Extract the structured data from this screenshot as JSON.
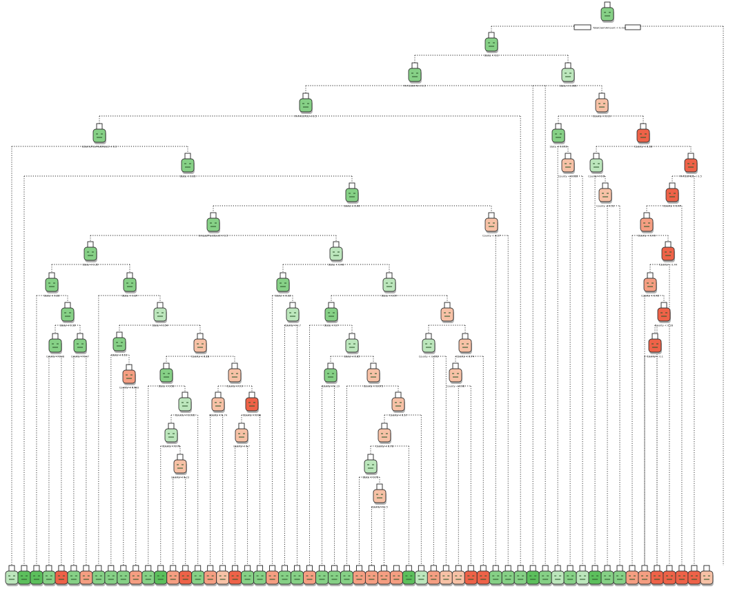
{
  "colors": {
    "dark_green": "#5cbf5c",
    "green": "#86d086",
    "light_green": "#bce6bc",
    "pale_red": "#f7c1a6",
    "salmon": "#f59e82",
    "red": "#ee6248",
    "shadow": "#b4b4b4",
    "edge": "#222222"
  },
  "icon": "node-icon",
  "root_label": "TotalClaimAmount < 0.032",
  "internal_nodes": [
    {
      "label": "State < 0.1",
      "fill": "green"
    },
    {
      "label": "PHY330076 < 0.5",
      "fill": "green"
    },
    {
      "label": "State < 0.066",
      "fill": "light_green"
    },
    {
      "label": "PHY410702 < 0.5",
      "fill": "green"
    },
    {
      "label": "IsSameProvMultiRole1 < 0.5",
      "fill": "green"
    },
    {
      "label": "State < 0.03",
      "fill": "green"
    },
    {
      "label": "State < 0.06",
      "fill": "green"
    },
    {
      "label": "UniquePhysCount < 1.5",
      "fill": "green"
    },
    {
      "label": "State < 0.35",
      "fill": "green"
    },
    {
      "label": "State < 0.28",
      "fill": "green"
    },
    {
      "label": "State < 0.16",
      "fill": "green"
    },
    {
      "label": "State < 0.37",
      "fill": "green"
    },
    {
      "label": "State < 0.54",
      "fill": "light_green"
    },
    {
      "label": "County < 0.28",
      "fill": "pale_red"
    },
    {
      "label": "State < 0.46",
      "fill": "light_green"
    },
    {
      "label": "State < 0.57",
      "fill": "light_green"
    },
    {
      "label": "State < 0.7",
      "fill": "green"
    },
    {
      "label": "State < 0.65",
      "fill": "light_green"
    },
    {
      "label": "County < 0.47",
      "fill": "green"
    },
    {
      "label": "County < 0.17",
      "fill": "pale_red"
    },
    {
      "label": "County < 0.19",
      "fill": "pale_red"
    },
    {
      "label": "County < 0.38",
      "fill": "red"
    },
    {
      "label": "PHY337425 < 0.5",
      "fill": "red"
    },
    {
      "label": "County < 0.47",
      "fill": "red"
    },
    {
      "label": "County < 0.44",
      "fill": "red"
    }
  ],
  "node_labels": [
    "County < 0.98",
    "County < 0.47",
    "State < 0.51",
    "County < 0.093",
    "State < 0.58",
    "County < 0.093",
    "County < 0.76",
    "County < 0.23",
    "County < 0.74",
    "County < 0.98",
    "County < 0.9",
    "County < 0.7",
    "State < 0.18",
    "County < 0.7",
    "County < 0.19",
    "County < 0.073",
    "County < 0.57",
    "County < 0.78",
    "State < 0.75",
    "County < 0.5",
    "County < 0.093",
    "County < 0.74",
    "County < 0.98",
    "State < 0.093",
    "County < 0.028",
    "County < 0.6",
    "County < 0.52",
    "County < 0.49",
    "County < 0.42",
    "County < 0.28",
    "County < 0.1"
  ],
  "leaves": [
    "light_green",
    "dark_green",
    "dark_green",
    "green",
    "red",
    "green",
    "salmon",
    "green",
    "green",
    "green",
    "salmon",
    "green",
    "dark_green",
    "salmon",
    "red",
    "green",
    "salmon",
    "pale_red",
    "red",
    "green",
    "green",
    "salmon",
    "green",
    "green",
    "salmon",
    "green",
    "green",
    "green",
    "salmon",
    "salmon",
    "salmon",
    "salmon",
    "dark_green",
    "light_green",
    "salmon",
    "pale_red",
    "pale_red",
    "red",
    "red",
    "green",
    "green",
    "green",
    "dark_green",
    "green",
    "light_green",
    "green",
    "light_green",
    "dark_green",
    "green",
    "green",
    "salmon",
    "salmon",
    "red",
    "red",
    "red",
    "red",
    "pale_red"
  ]
}
